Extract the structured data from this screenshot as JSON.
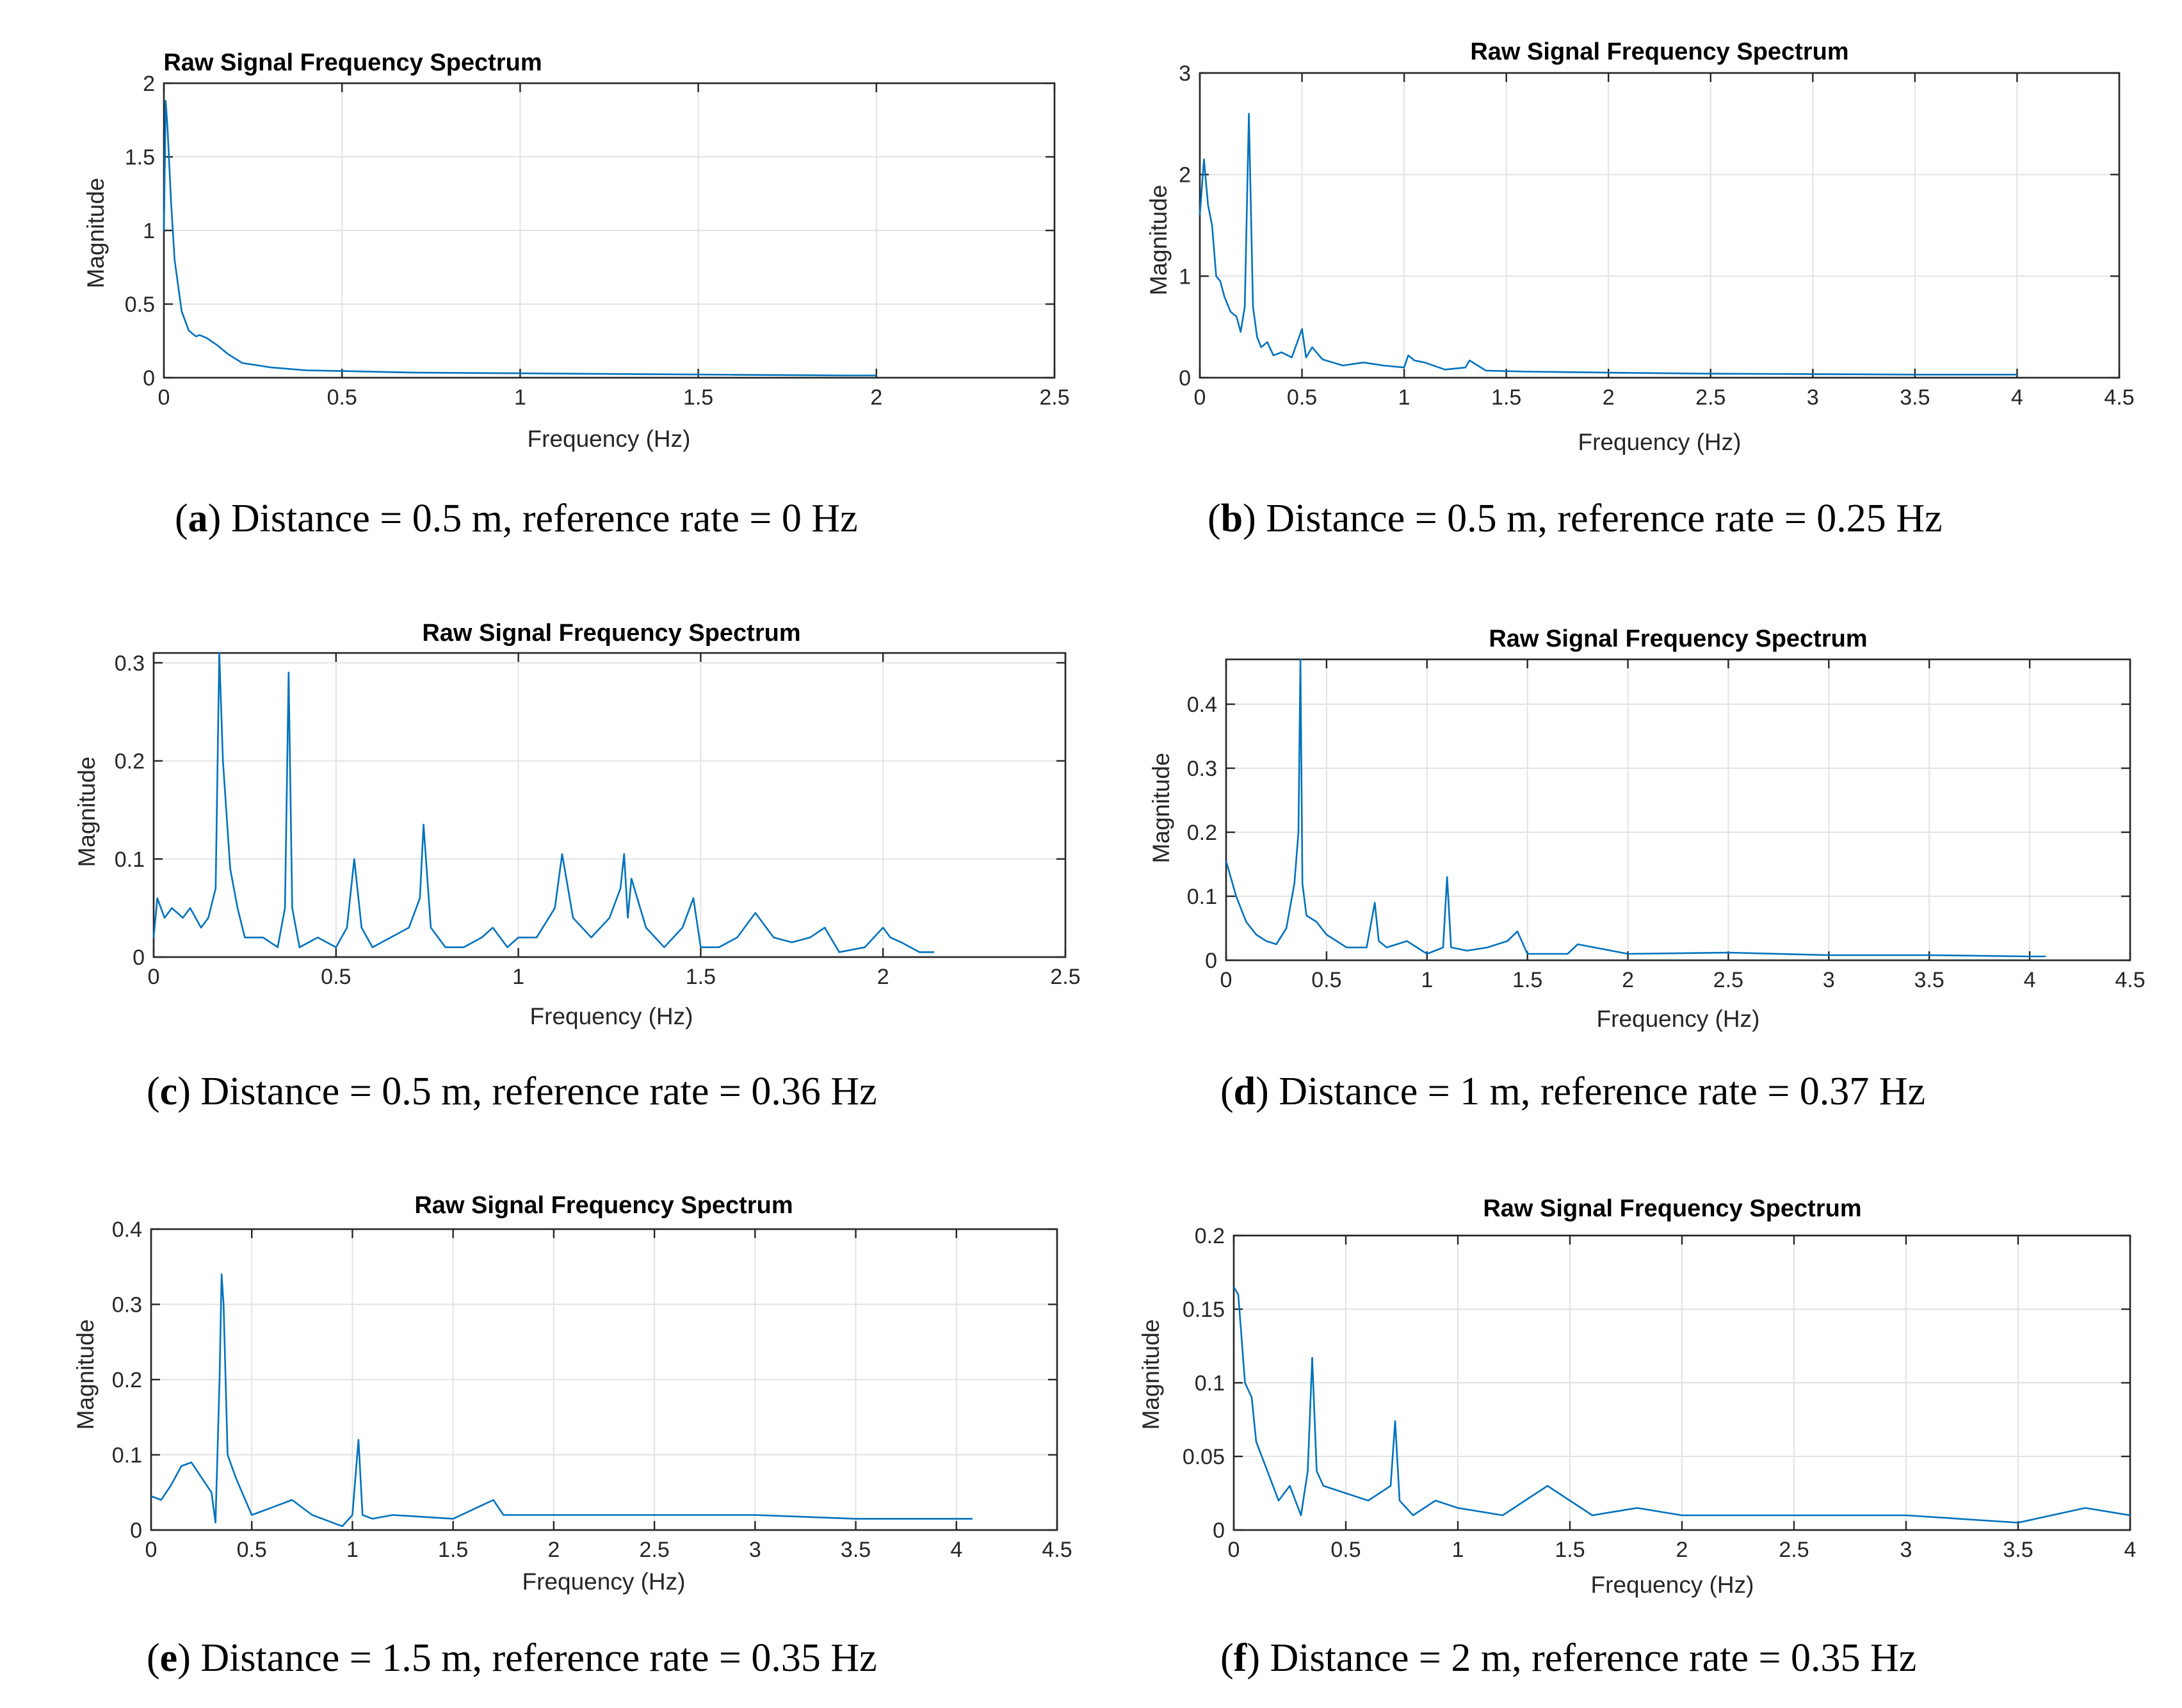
{
  "chart_data": [
    {
      "id": "a",
      "type": "line",
      "title": "Raw Signal Frequency Spectrum",
      "xlabel": "Frequency (Hz)",
      "ylabel": "Magnitude",
      "xlim": [
        0,
        2.5
      ],
      "ylim": [
        0,
        2
      ],
      "xticks": [
        "0",
        "0.5",
        "1",
        "1.5",
        "2",
        "2.5"
      ],
      "yticks": [
        "0",
        "0.5",
        "1",
        "1.5",
        "2"
      ],
      "grid": true,
      "caption": {
        "letter": "a",
        "text": " Distance = 0.5 m, reference rate = 0 Hz"
      },
      "series": [
        {
          "name": "Raw Signal",
          "color": "#0072bd",
          "x": [
            0,
            0.005,
            0.01,
            0.02,
            0.03,
            0.05,
            0.07,
            0.09,
            0.1,
            0.12,
            0.15,
            0.18,
            0.22,
            0.3,
            0.4,
            0.5,
            0.7,
            1.0,
            1.3,
            1.6,
            1.9,
            2.0
          ],
          "y": [
            1.0,
            1.88,
            1.7,
            1.2,
            0.8,
            0.45,
            0.32,
            0.28,
            0.29,
            0.27,
            0.22,
            0.16,
            0.1,
            0.07,
            0.05,
            0.045,
            0.035,
            0.03,
            0.025,
            0.02,
            0.015,
            0.015
          ]
        }
      ]
    },
    {
      "id": "b",
      "type": "line",
      "title": "Raw Signal Frequency Spectrum",
      "xlabel": "Frequency (Hz)",
      "ylabel": "Magnitude",
      "xlim": [
        0,
        4.5
      ],
      "ylim": [
        0,
        3
      ],
      "xticks": [
        "0",
        "0.5",
        "1",
        "1.5",
        "2",
        "2.5",
        "3",
        "3.5",
        "4",
        "4.5"
      ],
      "yticks": [
        "0",
        "1",
        "2",
        "3"
      ],
      "grid": true,
      "caption": {
        "letter": "b",
        "text": " Distance = 0.5 m, reference rate = 0.25 Hz"
      },
      "series": [
        {
          "name": "Raw Signal",
          "color": "#0072bd",
          "x": [
            0,
            0.02,
            0.04,
            0.06,
            0.08,
            0.1,
            0.12,
            0.15,
            0.18,
            0.2,
            0.22,
            0.24,
            0.26,
            0.28,
            0.3,
            0.33,
            0.36,
            0.4,
            0.45,
            0.5,
            0.52,
            0.55,
            0.6,
            0.7,
            0.8,
            0.9,
            1.0,
            1.02,
            1.05,
            1.1,
            1.2,
            1.3,
            1.32,
            1.4,
            1.6,
            2.0,
            2.5,
            3.0,
            3.5,
            4.0
          ],
          "y": [
            1.6,
            2.15,
            1.7,
            1.5,
            1.0,
            0.95,
            0.8,
            0.65,
            0.6,
            0.45,
            0.7,
            2.6,
            0.7,
            0.4,
            0.3,
            0.35,
            0.22,
            0.25,
            0.2,
            0.48,
            0.2,
            0.3,
            0.18,
            0.12,
            0.15,
            0.12,
            0.1,
            0.22,
            0.17,
            0.15,
            0.08,
            0.1,
            0.17,
            0.07,
            0.06,
            0.05,
            0.04,
            0.035,
            0.03,
            0.03
          ]
        }
      ]
    },
    {
      "id": "c",
      "type": "line",
      "title": "Raw Signal Frequency Spectrum",
      "xlabel": "Frequency (Hz)",
      "ylabel": "Magnitude",
      "xlim": [
        0,
        2.5
      ],
      "ylim": [
        0,
        0.31
      ],
      "xticks": [
        "0",
        "0.5",
        "1",
        "1.5",
        "2",
        "2.5"
      ],
      "yticks": [
        "0",
        "0.1",
        "0.2",
        "0.3"
      ],
      "grid": true,
      "caption": {
        "letter": "c",
        "text": " Distance = 0.5 m, reference rate = 0.36 Hz"
      },
      "series": [
        {
          "name": "Raw Signal",
          "color": "#0072bd",
          "x": [
            0,
            0.01,
            0.03,
            0.05,
            0.08,
            0.1,
            0.13,
            0.15,
            0.17,
            0.18,
            0.19,
            0.21,
            0.23,
            0.25,
            0.3,
            0.34,
            0.36,
            0.37,
            0.38,
            0.4,
            0.45,
            0.5,
            0.53,
            0.55,
            0.57,
            0.6,
            0.65,
            0.7,
            0.73,
            0.74,
            0.76,
            0.8,
            0.85,
            0.9,
            0.93,
            0.97,
            1.0,
            1.05,
            1.1,
            1.12,
            1.15,
            1.2,
            1.25,
            1.28,
            1.29,
            1.3,
            1.31,
            1.35,
            1.4,
            1.45,
            1.48,
            1.5,
            1.55,
            1.6,
            1.65,
            1.7,
            1.75,
            1.8,
            1.84,
            1.88,
            1.95,
            2.0,
            2.02,
            2.05,
            2.1,
            2.14
          ],
          "y": [
            0.02,
            0.06,
            0.04,
            0.05,
            0.04,
            0.05,
            0.03,
            0.04,
            0.07,
            0.31,
            0.2,
            0.09,
            0.05,
            0.02,
            0.02,
            0.01,
            0.05,
            0.29,
            0.05,
            0.01,
            0.02,
            0.01,
            0.03,
            0.1,
            0.03,
            0.01,
            0.02,
            0.03,
            0.06,
            0.135,
            0.03,
            0.01,
            0.01,
            0.02,
            0.03,
            0.01,
            0.02,
            0.02,
            0.05,
            0.105,
            0.04,
            0.02,
            0.04,
            0.07,
            0.105,
            0.04,
            0.08,
            0.03,
            0.01,
            0.03,
            0.06,
            0.01,
            0.01,
            0.02,
            0.045,
            0.02,
            0.015,
            0.02,
            0.03,
            0.005,
            0.01,
            0.03,
            0.02,
            0.015,
            0.005,
            0.005
          ]
        }
      ]
    },
    {
      "id": "d",
      "type": "line",
      "title": "Raw Signal Frequency Spectrum",
      "xlabel": "Frequency (Hz)",
      "ylabel": "Magnitude",
      "xlim": [
        0,
        4.5
      ],
      "ylim": [
        0,
        0.47
      ],
      "xticks": [
        "0",
        "0.5",
        "1",
        "1.5",
        "2",
        "2.5",
        "3",
        "3.5",
        "4",
        "4.5"
      ],
      "yticks": [
        "0",
        "0.1",
        "0.2",
        "0.3",
        "0.4"
      ],
      "grid": true,
      "caption": {
        "letter": "d",
        "text": " Distance = 1 m, reference rate = 0.37 Hz"
      },
      "series": [
        {
          "name": "Raw Signal",
          "color": "#0072bd",
          "x": [
            0,
            0.05,
            0.1,
            0.15,
            0.2,
            0.25,
            0.3,
            0.34,
            0.36,
            0.37,
            0.38,
            0.4,
            0.45,
            0.5,
            0.55,
            0.6,
            0.7,
            0.74,
            0.76,
            0.8,
            0.9,
            1.0,
            1.08,
            1.1,
            1.12,
            1.2,
            1.3,
            1.4,
            1.45,
            1.5,
            1.7,
            1.75,
            2.0,
            2.5,
            3.0,
            3.5,
            4.0,
            4.08
          ],
          "y": [
            0.155,
            0.1,
            0.06,
            0.04,
            0.03,
            0.025,
            0.05,
            0.12,
            0.2,
            0.47,
            0.12,
            0.07,
            0.06,
            0.04,
            0.03,
            0.02,
            0.02,
            0.09,
            0.03,
            0.02,
            0.03,
            0.01,
            0.02,
            0.13,
            0.02,
            0.015,
            0.02,
            0.03,
            0.045,
            0.01,
            0.01,
            0.025,
            0.01,
            0.012,
            0.008,
            0.008,
            0.006,
            0.006
          ]
        }
      ]
    },
    {
      "id": "e",
      "type": "line",
      "title": "Raw Signal Frequency Spectrum",
      "xlabel": "Frequency (Hz)",
      "ylabel": "Magnitude",
      "xlim": [
        0,
        4.5
      ],
      "ylim": [
        0,
        0.4
      ],
      "xticks": [
        "0",
        "0.5",
        "1",
        "1.5",
        "2",
        "2.5",
        "3",
        "3.5",
        "4",
        "4.5"
      ],
      "yticks": [
        "0",
        "0.1",
        "0.2",
        "0.3",
        "0.4"
      ],
      "grid": true,
      "caption": {
        "letter": "e",
        "text": " Distance = 1.5 m, reference rate = 0.35 Hz"
      },
      "series": [
        {
          "name": "Raw Signal",
          "color": "#0072bd",
          "x": [
            0,
            0.05,
            0.1,
            0.15,
            0.2,
            0.25,
            0.3,
            0.32,
            0.34,
            0.35,
            0.36,
            0.38,
            0.42,
            0.5,
            0.6,
            0.7,
            0.8,
            0.9,
            0.95,
            1.0,
            1.03,
            1.05,
            1.1,
            1.2,
            1.5,
            1.7,
            1.75,
            2.0,
            2.5,
            3.0,
            3.5,
            4.0,
            4.08
          ],
          "y": [
            0.045,
            0.04,
            0.06,
            0.085,
            0.09,
            0.07,
            0.05,
            0.01,
            0.2,
            0.34,
            0.3,
            0.1,
            0.07,
            0.02,
            0.03,
            0.04,
            0.02,
            0.01,
            0.005,
            0.02,
            0.12,
            0.02,
            0.015,
            0.02,
            0.015,
            0.04,
            0.02,
            0.02,
            0.02,
            0.02,
            0.015,
            0.015,
            0.015
          ]
        }
      ]
    },
    {
      "id": "f",
      "type": "line",
      "title": "Raw Signal Frequency Spectrum",
      "xlabel": "Frequency (Hz)",
      "ylabel": "Magnitude",
      "xlim": [
        0,
        4
      ],
      "ylim": [
        0,
        0.2
      ],
      "xticks": [
        "0",
        "0.5",
        "1",
        "1.5",
        "2",
        "2.5",
        "3",
        "3.5",
        "4"
      ],
      "yticks": [
        "0",
        "0.05",
        "0.1",
        "0.15",
        "0.2"
      ],
      "grid": true,
      "caption": {
        "letter": "f",
        "text": " Distance = 2 m, reference rate = 0.35 Hz"
      },
      "series": [
        {
          "name": "Raw Signal",
          "color": "#0072bd",
          "x": [
            0,
            0.02,
            0.05,
            0.08,
            0.1,
            0.15,
            0.2,
            0.25,
            0.3,
            0.33,
            0.35,
            0.37,
            0.4,
            0.5,
            0.6,
            0.7,
            0.72,
            0.74,
            0.8,
            0.9,
            1.0,
            1.2,
            1.4,
            1.45,
            1.6,
            1.8,
            2.0,
            2.5,
            3.0,
            3.5,
            3.8,
            4.0
          ],
          "y": [
            0.165,
            0.16,
            0.1,
            0.09,
            0.06,
            0.04,
            0.02,
            0.03,
            0.01,
            0.04,
            0.117,
            0.04,
            0.03,
            0.025,
            0.02,
            0.03,
            0.074,
            0.02,
            0.01,
            0.02,
            0.015,
            0.01,
            0.03,
            0.025,
            0.01,
            0.015,
            0.01,
            0.01,
            0.01,
            0.005,
            0.015,
            0.01
          ]
        }
      ]
    }
  ]
}
